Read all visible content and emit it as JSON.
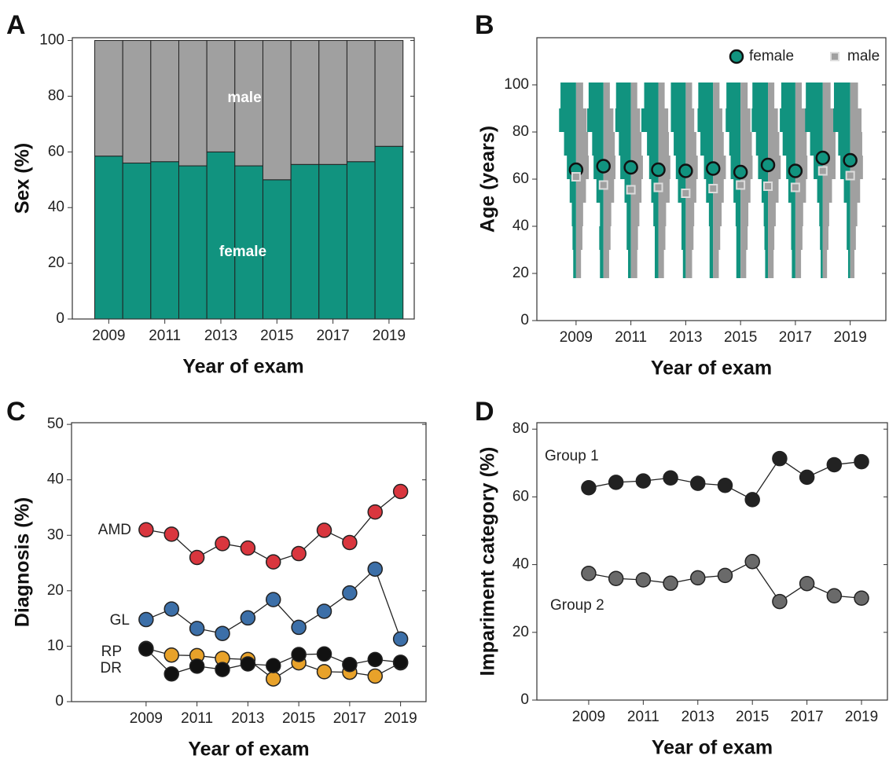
{
  "chart_data": [
    {
      "type": "bar",
      "stacked": true,
      "label": "A",
      "ylabel": "Sex (%)",
      "xlabel": "Year of exam",
      "x": [
        2009,
        2010,
        2011,
        2012,
        2013,
        2014,
        2015,
        2016,
        2017,
        2018,
        2019
      ],
      "series": [
        {
          "name": "female",
          "color": "#11937f",
          "values": [
            58.5,
            56,
            56.5,
            55,
            60,
            55,
            50,
            55.5,
            55.5,
            56.5,
            62
          ]
        },
        {
          "name": "male",
          "color": "#a0a0a0",
          "values": [
            41.5,
            44,
            43.5,
            45,
            40,
            45,
            50,
            44.5,
            44.5,
            43.5,
            38
          ]
        }
      ],
      "xlim": [
        2007.7,
        2019.9
      ],
      "ylim": [
        0,
        101
      ],
      "xticks": [
        2009,
        2011,
        2013,
        2015,
        2017,
        2019
      ],
      "yticks": [
        0,
        20,
        40,
        60,
        80,
        100
      ]
    },
    {
      "type": "distribution",
      "label": "B",
      "ylabel": "Age (years)",
      "xlabel": "Year of exam",
      "x": [
        2009,
        2010,
        2011,
        2012,
        2013,
        2014,
        2015,
        2016,
        2017,
        2018,
        2019
      ],
      "bins": [
        18,
        30,
        40,
        50,
        60,
        70,
        80,
        90,
        101
      ],
      "series": [
        {
          "name": "female",
          "color": "#11937f",
          "means": [
            64,
            65.5,
            65,
            64,
            63.5,
            64.5,
            63,
            66,
            63.5,
            69,
            68
          ],
          "hist": [
            [
              4,
              5,
              6,
              9,
              13,
              17,
              24,
              22
            ],
            [
              5,
              6,
              5,
              10,
              14,
              16,
              23,
              21
            ],
            [
              4,
              6,
              6,
              9,
              15,
              17,
              22,
              21
            ],
            [
              5,
              5,
              7,
              10,
              13,
              16,
              24,
              20
            ],
            [
              4,
              6,
              6,
              11,
              14,
              17,
              21,
              21
            ],
            [
              5,
              5,
              6,
              10,
              13,
              18,
              22,
              21
            ],
            [
              6,
              6,
              7,
              10,
              14,
              16,
              21,
              20
            ],
            [
              4,
              5,
              6,
              9,
              14,
              17,
              23,
              22
            ],
            [
              5,
              6,
              6,
              10,
              13,
              18,
              22,
              20
            ],
            [
              3,
              4,
              5,
              8,
              13,
              18,
              25,
              24
            ],
            [
              3,
              5,
              5,
              9,
              14,
              17,
              24,
              23
            ]
          ]
        },
        {
          "name": "male",
          "color": "#a0a0a0",
          "means": [
            61,
            57.5,
            55.5,
            56.5,
            54,
            56,
            57.5,
            57,
            56.5,
            63.5,
            61.5
          ],
          "hist": [
            [
              7,
              9,
              10,
              14,
              18,
              17,
              15,
              10
            ],
            [
              8,
              10,
              11,
              15,
              17,
              16,
              14,
              9
            ],
            [
              9,
              10,
              12,
              15,
              17,
              15,
              13,
              9
            ],
            [
              8,
              10,
              11,
              16,
              17,
              15,
              14,
              9
            ],
            [
              9,
              11,
              12,
              15,
              17,
              15,
              12,
              9
            ],
            [
              8,
              10,
              12,
              15,
              18,
              15,
              13,
              9
            ],
            [
              8,
              10,
              11,
              14,
              17,
              16,
              14,
              10
            ],
            [
              8,
              9,
              11,
              15,
              18,
              16,
              14,
              9
            ],
            [
              8,
              10,
              11,
              15,
              17,
              16,
              14,
              9
            ],
            [
              6,
              8,
              9,
              13,
              18,
              18,
              17,
              11
            ],
            [
              6,
              8,
              10,
              14,
              18,
              17,
              16,
              11
            ]
          ]
        }
      ],
      "legend": "upper right",
      "xlim": [
        2007.57,
        2020.3
      ],
      "ylim": [
        0,
        120
      ],
      "xticks": [
        2009,
        2011,
        2013,
        2015,
        2017,
        2019
      ],
      "yticks": [
        0,
        20,
        40,
        60,
        80,
        100
      ]
    },
    {
      "type": "line",
      "label": "C",
      "ylabel": "Diagnosis (%)",
      "xlabel": "Year of exam",
      "x": [
        2009,
        2010,
        2011,
        2012,
        2013,
        2014,
        2015,
        2016,
        2017,
        2018,
        2019
      ],
      "series": [
        {
          "name": "AMD",
          "color": "#d9363e",
          "values": [
            31,
            30.2,
            26,
            28.5,
            27.7,
            25.2,
            26.7,
            30.9,
            28.7,
            34.2,
            37.9
          ]
        },
        {
          "name": "GL",
          "color": "#3c6fa8",
          "values": [
            14.8,
            16.7,
            13.2,
            12.3,
            15.1,
            18.4,
            13.4,
            16.3,
            19.6,
            23.9,
            11.3
          ]
        },
        {
          "name": "RP",
          "color": "#e8a22a",
          "values": [
            9.6,
            8.4,
            8.3,
            7.8,
            7.6,
            4.1,
            7.0,
            5.4,
            5.3,
            4.6,
            7.0
          ]
        },
        {
          "name": "DR",
          "color": "#111111",
          "values": [
            9.5,
            5.0,
            6.4,
            5.8,
            6.8,
            6.5,
            8.5,
            8.6,
            6.7,
            7.6,
            7.1
          ]
        }
      ],
      "xlim": [
        2006.07,
        2020
      ],
      "ylim": [
        0,
        50.3
      ],
      "xticks": [
        2009,
        2011,
        2013,
        2015,
        2017,
        2019
      ],
      "yticks": [
        0,
        10,
        20,
        30,
        40,
        50
      ]
    },
    {
      "type": "line",
      "label": "D",
      "ylabel": "Impariment category (%)",
      "xlabel": "Year of exam",
      "x": [
        2009,
        2010,
        2011,
        2012,
        2013,
        2014,
        2015,
        2016,
        2017,
        2018,
        2019
      ],
      "series": [
        {
          "name": "Group 1",
          "color": "#222222",
          "values": [
            62.7,
            64.3,
            64.7,
            65.6,
            64,
            63.4,
            59.2,
            71.3,
            65.8,
            69.5,
            70.4
          ]
        },
        {
          "name": "Group 2",
          "color": "#6a6a6a",
          "values": [
            37.4,
            35.9,
            35.5,
            34.5,
            36.1,
            36.8,
            40.9,
            29.1,
            34.4,
            30.8,
            30.1
          ]
        }
      ],
      "xlim": [
        2007.1,
        2019.95
      ],
      "ylim": [
        0,
        81.9
      ],
      "xticks": [
        2009,
        2011,
        2013,
        2015,
        2017,
        2019
      ],
      "yticks": [
        0,
        20,
        40,
        60,
        80
      ]
    }
  ]
}
